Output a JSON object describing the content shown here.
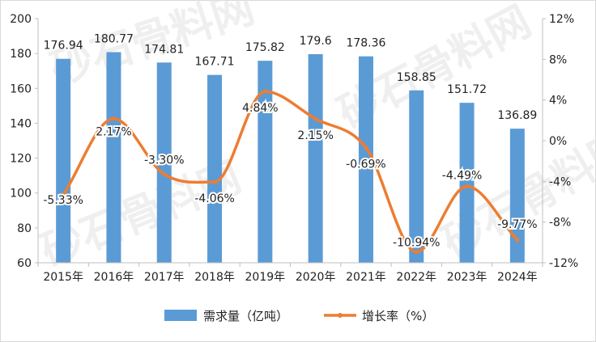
{
  "chart_data": {
    "type": "bar+line",
    "categories": [
      "2015年",
      "2016年",
      "2017年",
      "2018年",
      "2019年",
      "2020年",
      "2021年",
      "2022年",
      "2023年",
      "2024年"
    ],
    "series": [
      {
        "name": "需求量（亿吨）",
        "type": "bar",
        "axis": "left",
        "values": [
          176.94,
          180.77,
          174.81,
          167.71,
          175.82,
          179.6,
          178.36,
          158.85,
          151.72,
          136.89
        ],
        "labels": [
          "176.94",
          "180.77",
          "174.81",
          "167.71",
          "175.82",
          "179.6",
          "178.36",
          "158.85",
          "151.72",
          "136.89"
        ]
      },
      {
        "name": "增长率（%）",
        "type": "line",
        "axis": "right",
        "values": [
          -5.33,
          2.17,
          -3.3,
          -4.06,
          4.84,
          2.15,
          -0.69,
          -10.94,
          -4.49,
          -9.77
        ],
        "labels": [
          "-5.33%",
          "2.17%",
          "-3.30%",
          "-4.06%",
          "4.84%",
          "2.15%",
          "-0.69%",
          "-10.94%",
          "-4.49%",
          "-9.77%"
        ]
      }
    ],
    "ylim_left": [
      60,
      200
    ],
    "yticks_left": [
      "60",
      "80",
      "100",
      "120",
      "140",
      "160",
      "180",
      "200"
    ],
    "ylim_right": [
      -12,
      12
    ],
    "yticks_right": [
      "-12%",
      "-8%",
      "-4%",
      "0%",
      "4%",
      "8%",
      "12%"
    ],
    "legend_position": "bottom",
    "grid": false,
    "colors": {
      "bar": "#5b9bd5",
      "line": "#ed7d31"
    },
    "watermark": "砂石骨料网 www.cssgw.com"
  }
}
